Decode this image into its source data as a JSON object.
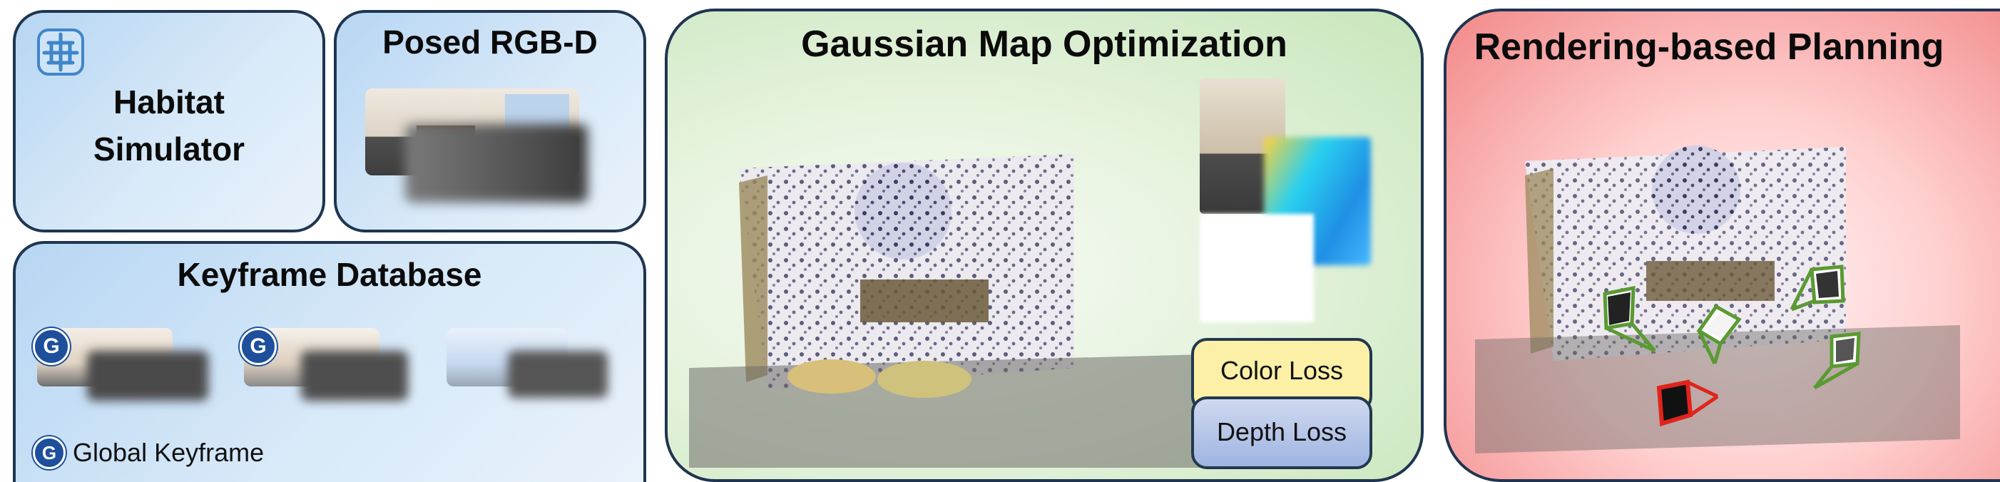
{
  "panels": {
    "habitat": {
      "line1": "Habitat",
      "line2": "Simulator"
    },
    "posed": {
      "title": "Posed RGB-D"
    },
    "keyframe": {
      "title": "Keyframe Database",
      "badge_letter": "G",
      "legend_label": "Global Keyframe"
    },
    "gaussian": {
      "title": "Gaussian Map Optimization",
      "color_loss": "Color Loss",
      "depth_loss": "Depth Loss"
    },
    "planning": {
      "title": "Rendering-based Planning"
    }
  },
  "colors": {
    "frame_border": "#1f3550",
    "candidate_pose": "#5a9a32",
    "selected_pose": "#e0241c",
    "badge": "#1d4f9c"
  }
}
